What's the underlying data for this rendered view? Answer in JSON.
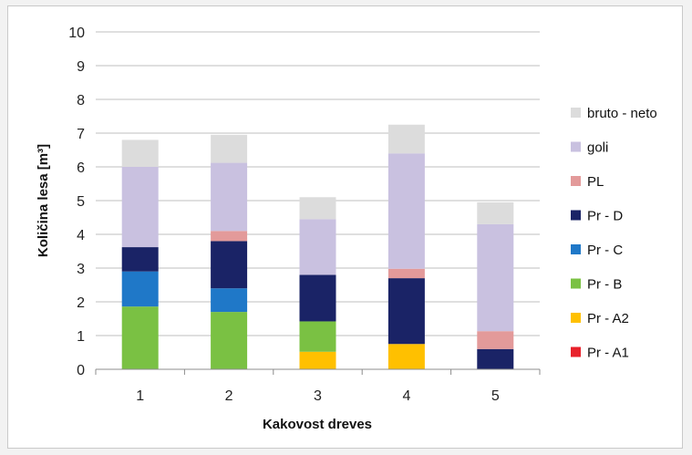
{
  "chart_data": {
    "type": "bar",
    "stacked": true,
    "categories": [
      "1",
      "2",
      "3",
      "4",
      "5"
    ],
    "xlabel": "Kakovost dreves",
    "ylabel": "Količina lesa [m³]",
    "ylim": [
      0,
      10
    ],
    "yticks": [
      "0",
      "1",
      "2",
      "3",
      "4",
      "5",
      "6",
      "7",
      "8",
      "9",
      "10"
    ],
    "grid": true,
    "legend_position": "right",
    "series": [
      {
        "name": "Pr - A1",
        "color": "#e8212b",
        "values": [
          0,
          0,
          0,
          0,
          0
        ]
      },
      {
        "name": "Pr - A2",
        "color": "#ffc000",
        "values": [
          0,
          0,
          0.52,
          0.75,
          0
        ]
      },
      {
        "name": "Pr - B",
        "color": "#7ac143",
        "values": [
          1.86,
          1.7,
          0.9,
          0,
          0
        ]
      },
      {
        "name": "Pr - C",
        "color": "#1f78c8",
        "values": [
          1.04,
          0.7,
          0,
          0,
          0
        ]
      },
      {
        "name": "Pr - D",
        "color": "#1a2366",
        "values": [
          0.72,
          1.4,
          1.38,
          1.95,
          0.6
        ]
      },
      {
        "name": "PL",
        "color": "#e39a9a",
        "values": [
          0,
          0.3,
          0,
          0.28,
          0.53
        ]
      },
      {
        "name": "goli",
        "color": "#c9c1e0",
        "values": [
          2.38,
          2.02,
          1.65,
          3.42,
          3.17
        ]
      },
      {
        "name": "bruto - neto",
        "color": "#dcdcdc",
        "values": [
          0.8,
          0.83,
          0.65,
          0.85,
          0.65
        ]
      }
    ]
  }
}
